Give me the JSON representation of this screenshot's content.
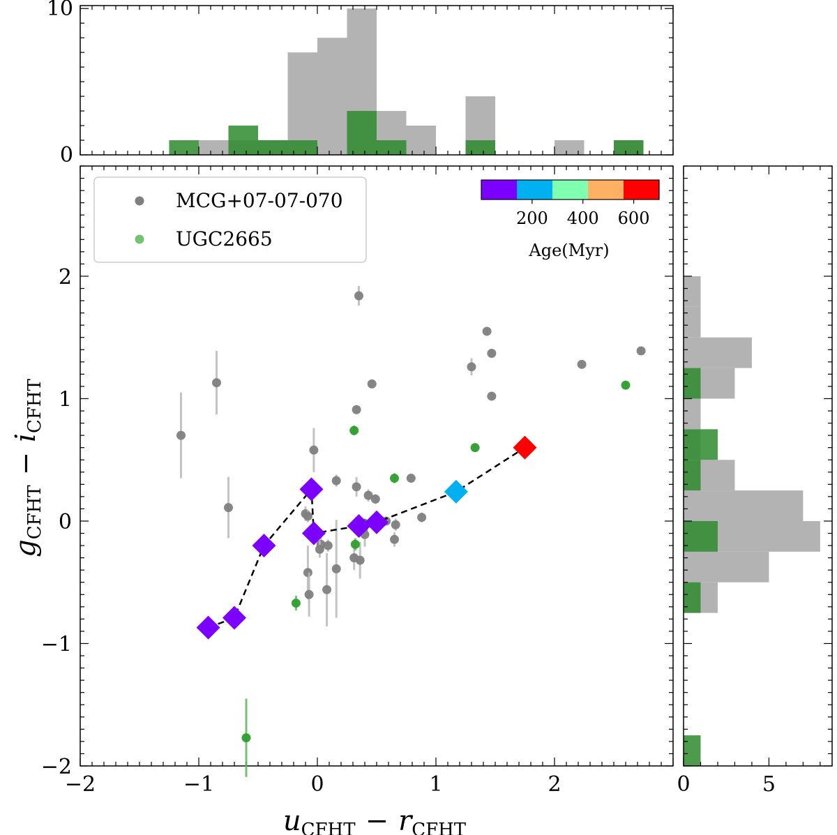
{
  "chart_data": [
    {
      "type": "scatter",
      "name": "main",
      "xlabel": "u_CFHT - r_CFHT",
      "xlabel_main": "u",
      "xlabel_sub1": "CFHT",
      "xlabel_op": "−",
      "xlabel_var2": "r",
      "xlabel_sub2": "CFHT",
      "ylabel": "g_CFHT - i_CFHT",
      "ylabel_main": "g",
      "ylabel_sub1": "CFHT",
      "ylabel_op": "−",
      "ylabel_var2": "i",
      "ylabel_sub2": "CFHT",
      "xlim": [
        -2,
        3
      ],
      "ylim": [
        -2,
        2.9
      ],
      "xticks": [
        -2,
        -1,
        0,
        1,
        2
      ],
      "xtick_labels": [
        "−2",
        "−1",
        "0",
        "1",
        "2"
      ],
      "yticks": [
        -2,
        -1,
        0,
        1,
        2
      ],
      "ytick_labels": [
        "−2",
        "−1",
        "0",
        "1",
        "2"
      ],
      "legend": [
        {
          "label": "MCG+07-07-070",
          "color": "#808080"
        },
        {
          "label": "UGC2665",
          "color": "#2e9e2e"
        }
      ],
      "series": [
        {
          "name": "MCG+07-07-070",
          "color": "#808080",
          "errcolor": "#b8b8b8",
          "points": [
            {
              "x": -1.15,
              "y": 0.7,
              "err": 0.35
            },
            {
              "x": -0.85,
              "y": 1.13,
              "err": 0.26
            },
            {
              "x": -0.75,
              "y": 0.11,
              "err": 0.25
            },
            {
              "x": 0.35,
              "y": 1.84,
              "err": 0.08
            },
            {
              "x": 1.43,
              "y": 1.55,
              "err": 0.03
            },
            {
              "x": 1.47,
              "y": 1.37,
              "err": 0.03
            },
            {
              "x": 2.73,
              "y": 1.39,
              "err": 0.02
            },
            {
              "x": 2.23,
              "y": 1.28,
              "err": 0.02
            },
            {
              "x": 1.3,
              "y": 1.26,
              "err": 0.07
            },
            {
              "x": 1.47,
              "y": 1.02,
              "err": 0.03
            },
            {
              "x": 0.46,
              "y": 1.12,
              "err": 0.03
            },
            {
              "x": 0.33,
              "y": 0.91,
              "err": 0.03
            },
            {
              "x": -0.03,
              "y": 0.58,
              "err": 0.18
            },
            {
              "x": 0.79,
              "y": 0.35,
              "err": 0.03
            },
            {
              "x": 0.16,
              "y": 0.33,
              "err": 0.05
            },
            {
              "x": 0.33,
              "y": 0.28,
              "err": 0.08
            },
            {
              "x": 0.43,
              "y": 0.21,
              "err": 0.05
            },
            {
              "x": 0.49,
              "y": 0.18,
              "err": 0.04
            },
            {
              "x": -0.1,
              "y": 0.06,
              "err": 0.06
            },
            {
              "x": -0.08,
              "y": 0.04,
              "err": 0.05
            },
            {
              "x": 0.88,
              "y": 0.03,
              "err": 0.04
            },
            {
              "x": 0.58,
              "y": 0.0,
              "err": 0.03
            },
            {
              "x": 0.66,
              "y": -0.03,
              "err": 0.05
            },
            {
              "x": 0.39,
              "y": -0.06,
              "err": 0.08
            },
            {
              "x": 0.4,
              "y": -0.11,
              "err": 0.1
            },
            {
              "x": 0.65,
              "y": -0.15,
              "err": 0.06
            },
            {
              "x": 0.03,
              "y": -0.19,
              "err": 0.06
            },
            {
              "x": 0.09,
              "y": -0.2,
              "err": 0.05
            },
            {
              "x": 0.02,
              "y": -0.23,
              "err": 0.07
            },
            {
              "x": 0.31,
              "y": -0.3,
              "err": 0.1
            },
            {
              "x": 0.36,
              "y": -0.32,
              "err": 0.15
            },
            {
              "x": 0.16,
              "y": -0.39,
              "err": 0.4
            },
            {
              "x": -0.08,
              "y": -0.42,
              "err": 0.22
            },
            {
              "x": 0.08,
              "y": -0.56,
              "err": 0.3
            },
            {
              "x": -0.07,
              "y": -0.6,
              "err": 0.18
            }
          ]
        },
        {
          "name": "UGC2665",
          "color": "#2e9e2e",
          "errcolor": "#5cb85c",
          "points": [
            {
              "x": 2.6,
              "y": 1.11,
              "err": 0.03
            },
            {
              "x": 0.31,
              "y": 0.74,
              "err": 0.04
            },
            {
              "x": 1.33,
              "y": 0.6,
              "err": 0.03
            },
            {
              "x": 0.65,
              "y": 0.35,
              "err": 0.04
            },
            {
              "x": 0.32,
              "y": -0.19,
              "err": 0.05
            },
            {
              "x": 0.4,
              "y": -0.02,
              "err": 0.04
            },
            {
              "x": -0.18,
              "y": -0.67,
              "err": 0.06
            },
            {
              "x": -0.6,
              "y": -1.77,
              "err": 0.32
            }
          ]
        }
      ],
      "track": {
        "points": [
          {
            "x": -0.92,
            "y": -0.87,
            "age": 5
          },
          {
            "x": -0.7,
            "y": -0.79,
            "age": 8
          },
          {
            "x": -0.45,
            "y": -0.2,
            "age": 10
          },
          {
            "x": -0.05,
            "y": 0.26,
            "age": 20
          },
          {
            "x": -0.03,
            "y": -0.1,
            "age": 40
          },
          {
            "x": 0.35,
            "y": -0.04,
            "age": 70
          },
          {
            "x": 0.5,
            "y": -0.01,
            "age": 100
          },
          {
            "x": 1.17,
            "y": 0.24,
            "age": 200
          },
          {
            "x": 1.75,
            "y": 0.6,
            "age": 650
          }
        ]
      },
      "colorbar": {
        "label": "Age(Myr)",
        "colors": [
          "#7b00ff",
          "#00b0f0",
          "#80ffb0",
          "#ffb060",
          "#ff0000"
        ],
        "range": [
          0,
          700
        ],
        "ticks": [
          200,
          400,
          600
        ],
        "tick_labels": [
          "200",
          "400",
          "600"
        ]
      }
    },
    {
      "type": "bar",
      "name": "top-histogram",
      "orientation": "vertical",
      "ylim": [
        0,
        10.2
      ],
      "yticks": [
        0,
        10
      ],
      "ytick_labels": [
        "0",
        "10"
      ],
      "bin_edges": [
        -1.25,
        -1.0,
        -0.75,
        -0.5,
        -0.25,
        0.0,
        0.25,
        0.5,
        0.75,
        1.0,
        1.25,
        1.5,
        1.75,
        2.0,
        2.25,
        2.5,
        2.75
      ],
      "series": [
        {
          "name": "MCG+07-07-070",
          "color": "#b3b3b3",
          "values": [
            0,
            1,
            1,
            1,
            7,
            8,
            10,
            3,
            2,
            0,
            4,
            0,
            0,
            1,
            0,
            1
          ]
        },
        {
          "name": "UGC2665",
          "color": "#2e8b2e",
          "values": [
            1,
            0,
            2,
            1,
            1,
            0,
            3,
            1,
            0,
            0,
            1,
            0,
            0,
            0,
            0,
            1
          ]
        }
      ]
    },
    {
      "type": "bar",
      "name": "right-histogram",
      "orientation": "horizontal",
      "xlim": [
        0,
        8.7
      ],
      "xticks": [
        0,
        5
      ],
      "xtick_labels": [
        "0",
        "5"
      ],
      "bin_edges": [
        -2.0,
        -1.75,
        -1.5,
        -1.25,
        -1.0,
        -0.75,
        -0.5,
        -0.25,
        0.0,
        0.25,
        0.5,
        0.75,
        1.0,
        1.25,
        1.5,
        1.75,
        2.0
      ],
      "series": [
        {
          "name": "MCG+07-07-070",
          "color": "#b3b3b3",
          "values": [
            0,
            0,
            0,
            0,
            0,
            2,
            5,
            8,
            7,
            3,
            1,
            1,
            3,
            4,
            1,
            1
          ]
        },
        {
          "name": "UGC2665",
          "color": "#2e8b2e",
          "values": [
            1,
            0,
            0,
            0,
            0,
            1,
            0,
            2,
            0,
            1,
            2,
            0,
            1,
            0,
            0,
            0
          ]
        }
      ]
    }
  ]
}
